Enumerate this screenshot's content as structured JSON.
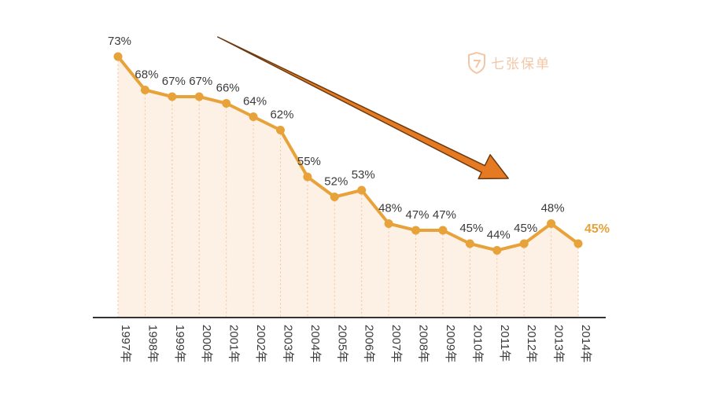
{
  "watermark": {
    "text": "七张保单",
    "icon": "shield-icon"
  },
  "colors": {
    "line": "#e8a23a",
    "area": "#fdf1e6",
    "arrow_fill": "#e57a22",
    "arrow_stroke": "#6a3a12",
    "axis": "#333333",
    "dash": "#f2c49a",
    "last_label": "#e8a23a"
  },
  "chart_data": {
    "type": "line",
    "title": "",
    "xlabel": "",
    "ylabel": "",
    "categories": [
      "1997年",
      "1998年",
      "1999年",
      "2000年",
      "2001年",
      "2002年",
      "2003年",
      "2004年",
      "2005年",
      "2006年",
      "2007年",
      "2008年",
      "2009年",
      "2010年",
      "2011年",
      "2012年",
      "2013年",
      "2014年"
    ],
    "series": [
      {
        "values": [
          73,
          68,
          67,
          67,
          66,
          64,
          62,
          55,
          52,
          53,
          48,
          47,
          47,
          45,
          44,
          45,
          48,
          45
        ]
      }
    ],
    "value_labels": [
      "73%",
      "68%",
      "67%",
      "67%",
      "66%",
      "64%",
      "62%",
      "55%",
      "52%",
      "53%",
      "48%",
      "47%",
      "47%",
      "45%",
      "44%",
      "45%",
      "48%",
      "45%"
    ],
    "trend_arrow": {
      "from_category": "1999年",
      "to_category": "2012年",
      "direction": "down"
    },
    "grid": false,
    "legend": "none"
  }
}
